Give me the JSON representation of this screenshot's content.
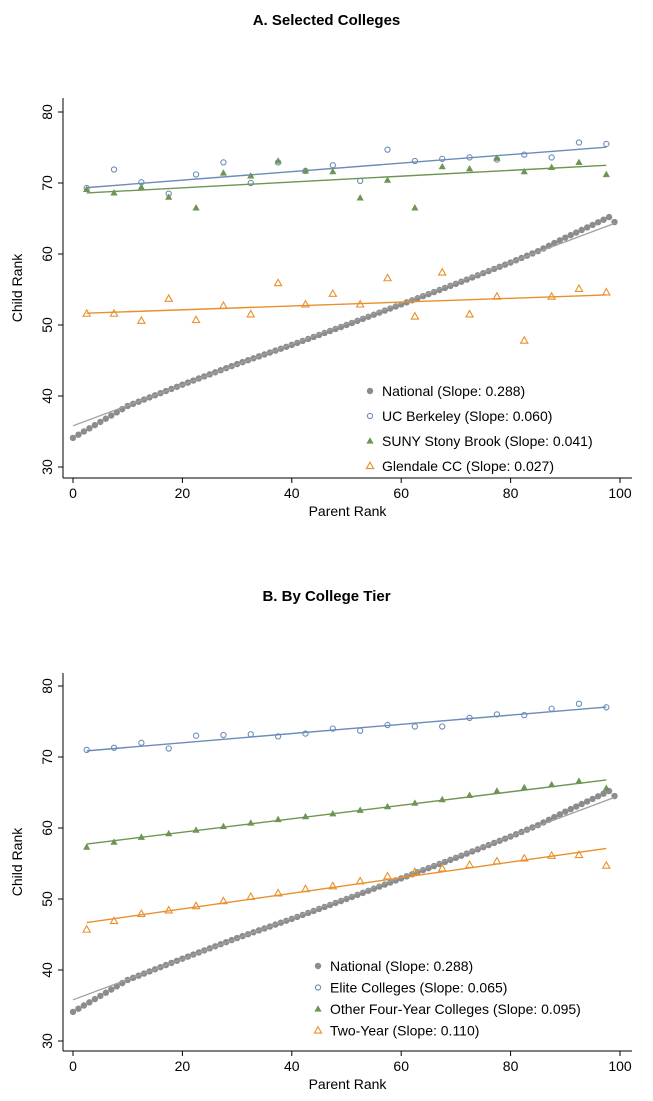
{
  "chart_data": [
    {
      "type": "scatter",
      "title": "A. Selected Colleges",
      "xlabel": "Parent Rank",
      "ylabel": "Child Rank",
      "xlim": [
        0,
        100
      ],
      "ylim": [
        30,
        80
      ],
      "xticks": [
        0,
        20,
        40,
        60,
        80,
        100
      ],
      "yticks": [
        30,
        40,
        50,
        60,
        70,
        80
      ],
      "grid": false,
      "legend_position": "bottom-right",
      "series": [
        {
          "name": "National (Slope: 0.288)",
          "color": "#8c8c8c",
          "marker": "filled-circle",
          "fit": {
            "intercept": 35.8,
            "slope": 0.288
          },
          "curve": {
            "x": [
              0,
              10,
              20,
              30,
              40,
              50,
              60,
              70,
              80,
              85,
              90,
              95,
              98,
              99
            ],
            "y": [
              34.1,
              38.6,
              41.6,
              44.5,
              47.2,
              50.0,
              52.9,
              55.8,
              58.8,
              60.4,
              62.3,
              64.1,
              65.2,
              64.5
            ]
          }
        },
        {
          "name": "UC Berkeley (Slope: 0.060)",
          "color": "#6b8cb8",
          "marker": "hollow-circle",
          "fit": {
            "intercept": 69.2,
            "slope": 0.06
          },
          "x": [
            2.5,
            7.5,
            12.5,
            17.5,
            22.5,
            27.5,
            32.5,
            37.5,
            42.5,
            47.5,
            52.5,
            57.5,
            62.5,
            67.5,
            72.5,
            77.5,
            82.5,
            87.5,
            92.5,
            97.5
          ],
          "y": [
            69.3,
            71.9,
            70.1,
            68.5,
            71.2,
            72.9,
            70.0,
            72.9,
            71.7,
            72.5,
            70.3,
            74.7,
            73.1,
            73.4,
            73.6,
            73.3,
            74.0,
            73.6,
            75.7,
            75.5
          ]
        },
        {
          "name": "SUNY Stony Brook (Slope: 0.041)",
          "color": "#6e9553",
          "marker": "filled-triangle",
          "fit": {
            "intercept": 68.5,
            "slope": 0.041
          },
          "x": [
            2.5,
            7.5,
            12.5,
            17.5,
            22.5,
            27.5,
            32.5,
            37.5,
            42.5,
            47.5,
            52.5,
            57.5,
            62.5,
            67.5,
            72.5,
            77.5,
            82.5,
            87.5,
            92.5,
            97.5
          ],
          "y": [
            69.1,
            68.6,
            69.4,
            68.0,
            66.5,
            71.4,
            71.0,
            73.1,
            71.7,
            71.6,
            67.9,
            70.4,
            66.5,
            72.3,
            72.0,
            73.5,
            71.6,
            72.2,
            72.9,
            71.2
          ]
        },
        {
          "name": "Glendale CC (Slope: 0.027)",
          "color": "#e8902c",
          "marker": "hollow-triangle",
          "fit": {
            "intercept": 51.6,
            "slope": 0.027
          },
          "x": [
            2.5,
            7.5,
            12.5,
            17.5,
            22.5,
            27.5,
            32.5,
            37.5,
            42.5,
            47.5,
            52.5,
            57.5,
            62.5,
            67.5,
            72.5,
            77.5,
            82.5,
            87.5,
            92.5,
            97.5
          ],
          "y": [
            51.6,
            51.6,
            50.6,
            53.7,
            50.7,
            52.7,
            51.5,
            55.9,
            52.9,
            54.4,
            52.9,
            56.6,
            51.2,
            57.4,
            51.5,
            54.0,
            47.8,
            54.0,
            55.1,
            54.6
          ]
        }
      ]
    },
    {
      "type": "scatter",
      "title": "B. By College Tier",
      "xlabel": "Parent Rank",
      "ylabel": "Child Rank",
      "xlim": [
        0,
        100
      ],
      "ylim": [
        30,
        80
      ],
      "xticks": [
        0,
        20,
        40,
        60,
        80,
        100
      ],
      "yticks": [
        30,
        40,
        50,
        60,
        70,
        80
      ],
      "grid": false,
      "legend_position": "bottom-right",
      "series": [
        {
          "name": "National (Slope: 0.288)",
          "color": "#8c8c8c",
          "marker": "filled-circle",
          "fit": {
            "intercept": 35.8,
            "slope": 0.288
          },
          "curve": {
            "x": [
              0,
              10,
              20,
              30,
              40,
              50,
              60,
              70,
              80,
              85,
              90,
              95,
              98,
              99
            ],
            "y": [
              34.1,
              38.6,
              41.6,
              44.5,
              47.2,
              50.0,
              52.9,
              55.8,
              58.8,
              60.4,
              62.3,
              64.1,
              65.2,
              64.5
            ]
          }
        },
        {
          "name": "Elite Colleges (Slope: 0.065)",
          "color": "#6b8cb8",
          "marker": "hollow-circle",
          "fit": {
            "intercept": 70.7,
            "slope": 0.065
          },
          "x": [
            2.5,
            7.5,
            12.5,
            17.5,
            22.5,
            27.5,
            32.5,
            37.5,
            42.5,
            47.5,
            52.5,
            57.5,
            62.5,
            67.5,
            72.5,
            77.5,
            82.5,
            87.5,
            92.5,
            97.5
          ],
          "y": [
            71.0,
            71.3,
            72.0,
            71.2,
            73.0,
            73.1,
            73.2,
            72.9,
            73.3,
            74.0,
            73.7,
            74.5,
            74.3,
            74.3,
            75.5,
            76.0,
            75.9,
            76.8,
            77.5,
            77.0
          ]
        },
        {
          "name": "Other Four-Year Colleges (Slope: 0.095)",
          "color": "#6e9553",
          "marker": "filled-triangle",
          "fit": {
            "intercept": 57.5,
            "slope": 0.095
          },
          "x": [
            2.5,
            7.5,
            12.5,
            17.5,
            22.5,
            27.5,
            32.5,
            37.5,
            42.5,
            47.5,
            52.5,
            57.5,
            62.5,
            67.5,
            72.5,
            77.5,
            82.5,
            87.5,
            92.5,
            97.5
          ],
          "y": [
            57.3,
            58.0,
            58.7,
            59.2,
            59.7,
            60.2,
            60.7,
            61.2,
            61.6,
            62.0,
            62.5,
            63.0,
            63.5,
            64.0,
            64.6,
            65.2,
            65.7,
            66.1,
            66.6,
            65.6
          ]
        },
        {
          "name": "Two-Year (Slope: 0.110)",
          "color": "#e8902c",
          "marker": "hollow-triangle",
          "fit": {
            "intercept": 46.4,
            "slope": 0.11
          },
          "x": [
            2.5,
            7.5,
            12.5,
            17.5,
            22.5,
            27.5,
            32.5,
            37.5,
            42.5,
            47.5,
            52.5,
            57.5,
            62.5,
            67.5,
            72.5,
            77.5,
            82.5,
            87.5,
            92.5,
            97.5
          ],
          "y": [
            45.7,
            46.9,
            47.9,
            48.4,
            49.0,
            49.7,
            50.3,
            50.8,
            51.4,
            51.8,
            52.5,
            53.2,
            53.8,
            54.3,
            54.8,
            55.3,
            55.7,
            56.1,
            56.2,
            54.7
          ]
        }
      ]
    }
  ]
}
